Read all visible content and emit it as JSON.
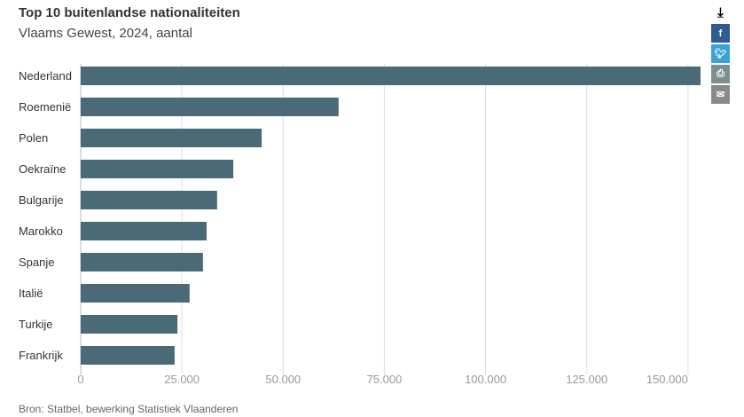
{
  "chart_data": {
    "type": "bar",
    "orientation": "horizontal",
    "title": "Top 10 buitenlandse nationaliteiten",
    "subtitle": "Vlaams Gewest, 2024, aantal",
    "categories": [
      "Nederland",
      "Roemenië",
      "Polen",
      "Oekraïne",
      "Bulgarije",
      "Marokko",
      "Spanje",
      "Italië",
      "Turkije",
      "Frankrijk"
    ],
    "values": [
      153100,
      63700,
      44700,
      37700,
      33700,
      31100,
      30200,
      26900,
      23900,
      23200
    ],
    "xlim": [
      0,
      153100
    ],
    "xticks": [
      0,
      25000,
      50000,
      75000,
      100000,
      125000,
      150000
    ],
    "xtick_labels": [
      "0",
      "25.000",
      "50.000",
      "75.000",
      "100.000",
      "125.000",
      "150.000"
    ],
    "grid": "vertical",
    "bar_color": "#4b6a78",
    "source": "Bron: Statbel, bewerking Statistiek Vlaanderen"
  },
  "share": {
    "icons": [
      "download-icon",
      "facebook-icon",
      "twitter-icon",
      "print-icon",
      "mail-icon"
    ],
    "colors": {
      "facebook": "#2f5a94",
      "twitter": "#3aa3d6",
      "print": "#7d8f91",
      "mail": "#8a8a8a"
    }
  }
}
